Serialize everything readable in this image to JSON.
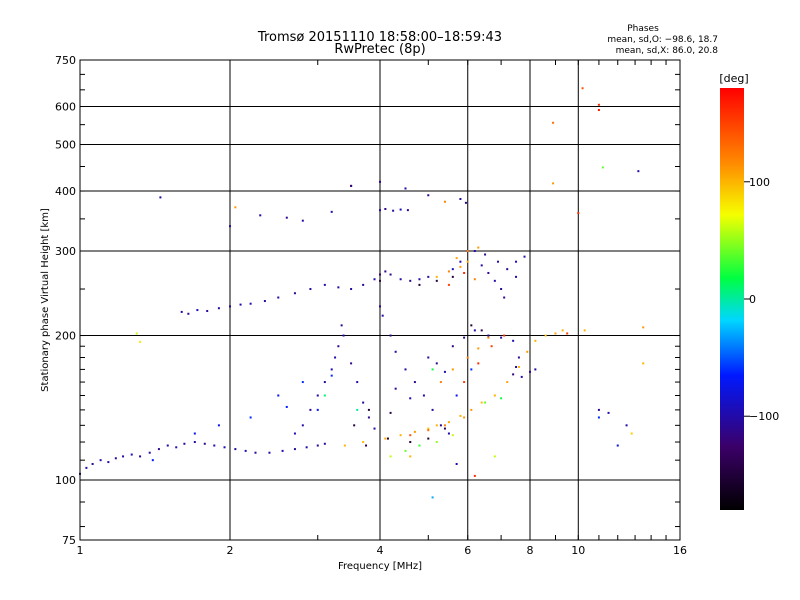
{
  "chart_data": {
    "type": "scatter",
    "title": "Tromsø 20151110 18:58:00–18:59:43",
    "subtitle": "RwPretec (8p)",
    "xlabel": "Frequency [MHz]",
    "ylabel": "Stationary phase Virtual Height [km]",
    "x_scale": "log",
    "y_scale": "log",
    "xlim": [
      1,
      16
    ],
    "ylim": [
      75,
      750
    ],
    "x_ticks": [
      1,
      2,
      4,
      6,
      8,
      10,
      16
    ],
    "x_tick_labels": [
      "1",
      "2",
      "4",
      "6",
      "8",
      "10",
      "16"
    ],
    "y_ticks": [
      75,
      100,
      200,
      300,
      400,
      500,
      600,
      750
    ],
    "y_tick_labels": [
      "75",
      "100",
      "200",
      "300",
      "400",
      "500",
      "600",
      "750"
    ],
    "x_grid": [
      2,
      4,
      6,
      8,
      10
    ],
    "y_grid": [
      100,
      200,
      300,
      400,
      500,
      600
    ],
    "grid": true,
    "stats": {
      "heading": "Phases",
      "line_o": "mean, sd,O: −98.6, 18.7",
      "line_x": "mean, sd,X:  86.0, 20.8"
    },
    "colorbar": {
      "label": "[deg]",
      "range": [
        -180,
        180
      ],
      "tick_values": [
        100,
        0,
        -100
      ],
      "tick_labels": [
        "100",
        "0",
        "−100"
      ]
    },
    "series": [
      {
        "points": [
          [
            1.0,
            103,
            -110
          ],
          [
            1.03,
            106,
            -100
          ],
          [
            1.06,
            108,
            -105
          ],
          [
            1.1,
            110,
            -95
          ],
          [
            1.14,
            109,
            -100
          ],
          [
            1.18,
            111,
            -110
          ],
          [
            1.22,
            112,
            -100
          ],
          [
            1.27,
            113,
            -95
          ],
          [
            1.32,
            112,
            -105
          ],
          [
            1.38,
            114,
            -100
          ],
          [
            1.44,
            116,
            -110
          ],
          [
            1.5,
            118,
            -100
          ],
          [
            1.56,
            117,
            -95
          ],
          [
            1.62,
            119,
            -105
          ],
          [
            1.7,
            120,
            -100
          ],
          [
            1.78,
            119,
            -110
          ],
          [
            1.86,
            118,
            -100
          ],
          [
            1.95,
            117,
            -95
          ],
          [
            2.05,
            116,
            -105
          ],
          [
            2.15,
            115,
            -100
          ],
          [
            2.25,
            114,
            -110
          ],
          [
            2.4,
            114,
            -100
          ],
          [
            2.55,
            115,
            -95
          ],
          [
            2.7,
            116,
            -105
          ],
          [
            2.85,
            117,
            -100
          ],
          [
            3.0,
            118,
            -110
          ],
          [
            3.1,
            119,
            -100
          ],
          [
            1.6,
            224,
            -100
          ],
          [
            1.65,
            222,
            -110
          ],
          [
            1.72,
            226,
            -95
          ],
          [
            1.8,
            225,
            -105
          ],
          [
            1.9,
            228,
            -100
          ],
          [
            2.0,
            230,
            -110
          ],
          [
            2.1,
            232,
            -100
          ],
          [
            2.2,
            233,
            -95
          ],
          [
            2.35,
            236,
            -105
          ],
          [
            2.5,
            240,
            -100
          ],
          [
            2.7,
            245,
            -110
          ],
          [
            2.9,
            250,
            -100
          ],
          [
            3.1,
            255,
            -95
          ],
          [
            3.3,
            252,
            -105
          ],
          [
            3.5,
            250,
            -100
          ],
          [
            3.7,
            255,
            -110
          ],
          [
            3.9,
            262,
            -100
          ],
          [
            4.0,
            268,
            -120
          ],
          [
            4.1,
            272,
            -110
          ],
          [
            4.2,
            268,
            -115
          ],
          [
            4.4,
            262,
            -100
          ],
          [
            4.6,
            260,
            -110
          ],
          [
            4.8,
            262,
            -100
          ],
          [
            5.0,
            265,
            -105
          ],
          [
            4.0,
            365,
            -100
          ],
          [
            4.1,
            367,
            -110
          ],
          [
            4.25,
            364,
            -100
          ],
          [
            4.4,
            366,
            -95
          ],
          [
            4.55,
            365,
            -105
          ],
          [
            3.5,
            410,
            -120
          ],
          [
            4.0,
            418,
            -110
          ],
          [
            4.5,
            405,
            -100
          ],
          [
            5.0,
            392,
            -110
          ],
          [
            5.8,
            385,
            -100
          ],
          [
            5.95,
            378,
            -110
          ],
          [
            2.0,
            338,
            -105
          ],
          [
            2.3,
            356,
            -100
          ],
          [
            2.6,
            352,
            -110
          ],
          [
            2.8,
            347,
            -100
          ],
          [
            3.2,
            362,
            -95
          ],
          [
            1.45,
            388,
            -105
          ],
          [
            3.35,
            210,
            -110
          ],
          [
            3.38,
            200,
            -100
          ],
          [
            3.3,
            190,
            -110
          ],
          [
            3.25,
            180,
            -100
          ],
          [
            3.2,
            170,
            -95
          ],
          [
            3.1,
            160,
            -105
          ],
          [
            3.0,
            150,
            -100
          ],
          [
            2.9,
            140,
            -110
          ],
          [
            2.8,
            130,
            -100
          ],
          [
            2.7,
            125,
            -95
          ],
          [
            3.5,
            175,
            -110
          ],
          [
            3.6,
            160,
            -100
          ],
          [
            3.7,
            145,
            -105
          ],
          [
            3.8,
            135,
            -110
          ],
          [
            3.9,
            128,
            -100
          ],
          [
            4.0,
            230,
            -110
          ],
          [
            4.05,
            220,
            -100
          ],
          [
            4.2,
            200,
            -110
          ],
          [
            4.3,
            185,
            -100
          ],
          [
            4.5,
            170,
            -105
          ],
          [
            4.7,
            160,
            -110
          ],
          [
            4.9,
            150,
            -100
          ],
          [
            5.1,
            140,
            -105
          ],
          [
            5.3,
            130,
            -110
          ],
          [
            5.5,
            125,
            -100
          ],
          [
            4.3,
            155,
            -110
          ],
          [
            4.6,
            148,
            -100
          ],
          [
            5.0,
            180,
            -105
          ],
          [
            5.2,
            175,
            -110
          ],
          [
            5.4,
            168,
            -100
          ],
          [
            5.6,
            190,
            -120
          ],
          [
            5.9,
            198,
            -105
          ],
          [
            6.2,
            205,
            -100
          ],
          [
            6.6,
            200,
            -110
          ],
          [
            7.0,
            198,
            -100
          ],
          [
            7.4,
            195,
            -95
          ],
          [
            7.6,
            180,
            -110
          ],
          [
            7.5,
            172,
            -105
          ],
          [
            7.4,
            166,
            -115
          ],
          [
            7.7,
            164,
            -100
          ],
          [
            8.0,
            168,
            -110
          ],
          [
            8.2,
            170,
            -105
          ],
          [
            6.4,
            280,
            -100
          ],
          [
            6.6,
            270,
            -110
          ],
          [
            6.8,
            260,
            -100
          ],
          [
            7.0,
            250,
            -105
          ],
          [
            7.1,
            240,
            -110
          ],
          [
            6.9,
            285,
            -100
          ],
          [
            7.2,
            275,
            -110
          ],
          [
            7.5,
            265,
            -100
          ],
          [
            6.2,
            300,
            -100
          ],
          [
            6.5,
            295,
            -110
          ],
          [
            5.6,
            275,
            -95
          ],
          [
            5.8,
            285,
            -100
          ],
          [
            6.0,
            300,
            -110
          ],
          [
            7.5,
            285,
            -95
          ],
          [
            7.8,
            292,
            -100
          ],
          [
            3.8,
            140,
            -150
          ],
          [
            4.2,
            138,
            -140
          ],
          [
            4.6,
            120,
            -145
          ],
          [
            5.0,
            122,
            -150
          ],
          [
            5.4,
            128,
            -140
          ],
          [
            4.8,
            255,
            -150
          ],
          [
            5.2,
            260,
            -145
          ],
          [
            5.6,
            265,
            -150
          ],
          [
            4.0,
            260,
            -140
          ],
          [
            3.55,
            130,
            -145
          ],
          [
            3.75,
            118,
            -140
          ],
          [
            4.15,
            122,
            -150
          ],
          [
            6.1,
            210,
            -150
          ],
          [
            6.4,
            205,
            -140
          ],
          [
            1.7,
            125,
            -70
          ],
          [
            2.2,
            135,
            -60
          ],
          [
            2.5,
            150,
            -70
          ],
          [
            2.8,
            160,
            -60
          ],
          [
            3.0,
            140,
            -70
          ],
          [
            1.4,
            110,
            -65
          ],
          [
            1.9,
            130,
            -75
          ],
          [
            2.6,
            142,
            -65
          ],
          [
            3.2,
            165,
            -60
          ],
          [
            5.7,
            150,
            -70
          ],
          [
            6.1,
            170,
            -60
          ],
          [
            3.4,
            118,
            100
          ],
          [
            3.7,
            120,
            95
          ],
          [
            4.1,
            122,
            105
          ],
          [
            4.4,
            124,
            100
          ],
          [
            4.7,
            126,
            110
          ],
          [
            5.0,
            128,
            95
          ],
          [
            5.2,
            130,
            100
          ],
          [
            5.5,
            132,
            105
          ],
          [
            5.8,
            136,
            100
          ],
          [
            6.1,
            140,
            110
          ],
          [
            6.4,
            145,
            95
          ],
          [
            6.8,
            150,
            100
          ],
          [
            7.2,
            160,
            105
          ],
          [
            7.6,
            172,
            100
          ],
          [
            7.9,
            185,
            110
          ],
          [
            8.2,
            195,
            100
          ],
          [
            8.6,
            200,
            95
          ],
          [
            9.0,
            202,
            105
          ],
          [
            9.3,
            205,
            100
          ],
          [
            4.6,
            124,
            140
          ],
          [
            5.0,
            127,
            130
          ],
          [
            5.4,
            130,
            120
          ],
          [
            5.9,
            135,
            110
          ],
          [
            5.3,
            160,
            120
          ],
          [
            5.6,
            170,
            110
          ],
          [
            6.0,
            180,
            120
          ],
          [
            6.3,
            188,
            110
          ],
          [
            6.6,
            198,
            120
          ],
          [
            5.2,
            265,
            100
          ],
          [
            5.5,
            272,
            120
          ],
          [
            5.8,
            278,
            110
          ],
          [
            6.0,
            285,
            100
          ],
          [
            6.2,
            262,
            120
          ],
          [
            6.0,
            300,
            120
          ],
          [
            6.3,
            305,
            110
          ],
          [
            5.7,
            290,
            105
          ],
          [
            5.4,
            380,
            120
          ],
          [
            4.2,
            112,
            60
          ],
          [
            4.5,
            115,
            40
          ],
          [
            4.8,
            118,
            30
          ],
          [
            5.2,
            120,
            50
          ],
          [
            5.6,
            124,
            60
          ],
          [
            6.5,
            145,
            40
          ],
          [
            7.0,
            148,
            20
          ],
          [
            3.1,
            150,
            10
          ],
          [
            3.6,
            140,
            0
          ],
          [
            5.1,
            170,
            20
          ],
          [
            6.8,
            112,
            60
          ],
          [
            5.9,
            160,
            150
          ],
          [
            6.3,
            175,
            160
          ],
          [
            6.7,
            190,
            150
          ],
          [
            7.1,
            200,
            160
          ],
          [
            5.5,
            255,
            150
          ],
          [
            5.9,
            270,
            160
          ],
          [
            9.5,
            202,
            150
          ],
          [
            10.0,
            360,
            160
          ],
          [
            8.9,
            555,
            130
          ],
          [
            10.2,
            655,
            140
          ],
          [
            11.0,
            590,
            170
          ],
          [
            11.0,
            605,
            160
          ],
          [
            11.2,
            448,
            40
          ],
          [
            8.9,
            415,
            110
          ],
          [
            1.3,
            202,
            60
          ],
          [
            1.32,
            194,
            80
          ],
          [
            2.05,
            370,
            110
          ],
          [
            3.5,
            410,
            -120
          ],
          [
            5.1,
            92,
            -30
          ],
          [
            6.2,
            102,
            160
          ],
          [
            5.7,
            108,
            -100
          ],
          [
            4.6,
            112,
            100
          ],
          [
            12.0,
            118,
            -80
          ],
          [
            12.5,
            130,
            -100
          ],
          [
            11.0,
            140,
            -110
          ],
          [
            13.5,
            208,
            110
          ],
          [
            13.5,
            175,
            100
          ],
          [
            10.3,
            205,
            100
          ],
          [
            11.5,
            138,
            -100
          ],
          [
            13.2,
            440,
            -100
          ],
          [
            12.8,
            125,
            90
          ],
          [
            11.0,
            135,
            -60
          ]
        ]
      }
    ]
  }
}
